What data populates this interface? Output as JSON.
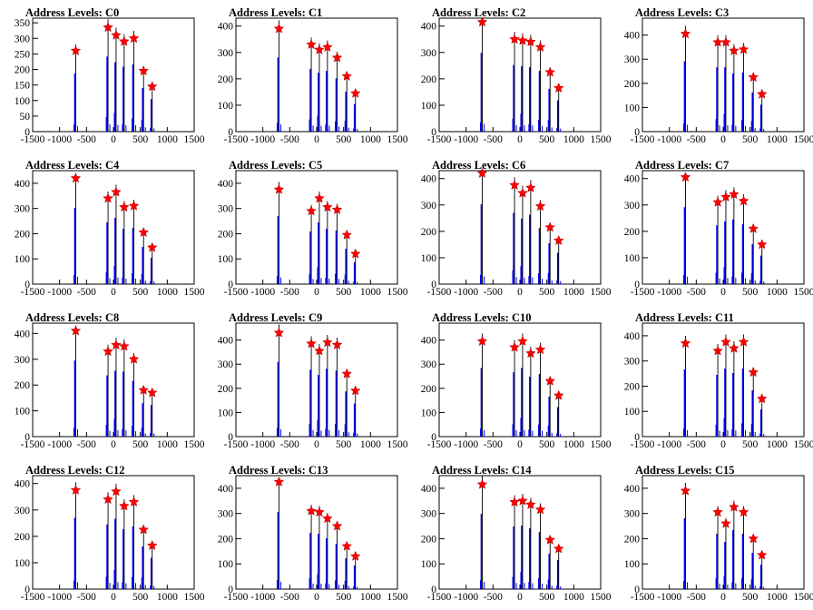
{
  "chart_data": [
    {
      "title": "Address Levels: C0",
      "type": "bar",
      "xlim": [
        -1500,
        1500
      ],
      "ylim": [
        0,
        365
      ],
      "yticks": [
        0,
        50,
        100,
        150,
        200,
        250,
        300,
        350
      ],
      "xticks": [
        -1500,
        -1000,
        -500,
        0,
        500,
        1000,
        1500
      ],
      "peaks": [
        [
          -700,
          260
        ],
        [
          -100,
          335
        ],
        [
          50,
          310
        ],
        [
          200,
          290
        ],
        [
          380,
          300
        ],
        [
          560,
          195
        ],
        [
          720,
          145
        ]
      ]
    },
    {
      "title": "Address Levels: C1",
      "type": "bar",
      "xlim": [
        -1500,
        1500
      ],
      "ylim": [
        0,
        430
      ],
      "yticks": [
        0,
        100,
        200,
        300,
        400
      ],
      "xticks": [
        -1500,
        -1000,
        -500,
        0,
        500,
        1000,
        1500
      ],
      "peaks": [
        [
          -700,
          390
        ],
        [
          -100,
          330
        ],
        [
          50,
          310
        ],
        [
          200,
          320
        ],
        [
          380,
          280
        ],
        [
          560,
          210
        ],
        [
          720,
          145
        ]
      ]
    },
    {
      "title": "Address Levels: C2",
      "type": "bar",
      "xlim": [
        -1500,
        1500
      ],
      "ylim": [
        0,
        430
      ],
      "yticks": [
        0,
        100,
        200,
        300,
        400
      ],
      "xticks": [
        -1500,
        -1000,
        -500,
        0,
        500,
        1000,
        1500
      ],
      "peaks": [
        [
          -700,
          415
        ],
        [
          -100,
          350
        ],
        [
          50,
          345
        ],
        [
          200,
          340
        ],
        [
          380,
          320
        ],
        [
          560,
          225
        ],
        [
          720,
          165
        ]
      ]
    },
    {
      "title": "Address Levels: C3",
      "type": "bar",
      "xlim": [
        -1500,
        1500
      ],
      "ylim": [
        0,
        470
      ],
      "yticks": [
        0,
        100,
        200,
        300,
        400
      ],
      "xticks": [
        -1500,
        -1000,
        -500,
        0,
        500,
        1000,
        1500
      ],
      "peaks": [
        [
          -700,
          405
        ],
        [
          -100,
          370
        ],
        [
          50,
          370
        ],
        [
          200,
          335
        ],
        [
          380,
          340
        ],
        [
          560,
          225
        ],
        [
          720,
          155
        ]
      ]
    },
    {
      "title": "Address Levels: C4",
      "type": "bar",
      "xlim": [
        -1500,
        1500
      ],
      "ylim": [
        0,
        450
      ],
      "yticks": [
        0,
        100,
        200,
        300,
        400
      ],
      "xticks": [
        -1500,
        -1000,
        -500,
        0,
        500,
        1000,
        1500
      ],
      "peaks": [
        [
          -700,
          420
        ],
        [
          -100,
          340
        ],
        [
          50,
          365
        ],
        [
          200,
          305
        ],
        [
          380,
          310
        ],
        [
          560,
          205
        ],
        [
          720,
          145
        ]
      ]
    },
    {
      "title": "Address Levels: C5",
      "type": "bar",
      "xlim": [
        -1500,
        1500
      ],
      "ylim": [
        0,
        450
      ],
      "yticks": [
        0,
        100,
        200,
        300,
        400
      ],
      "xticks": [
        -1500,
        -1000,
        -500,
        0,
        500,
        1000,
        1500
      ],
      "peaks": [
        [
          -700,
          375
        ],
        [
          -100,
          290
        ],
        [
          50,
          340
        ],
        [
          200,
          305
        ],
        [
          380,
          295
        ],
        [
          560,
          195
        ],
        [
          720,
          120
        ]
      ]
    },
    {
      "title": "Address Levels: C6",
      "type": "bar",
      "xlim": [
        -1500,
        1500
      ],
      "ylim": [
        0,
        430
      ],
      "yticks": [
        0,
        100,
        200,
        300,
        400
      ],
      "xticks": [
        -1500,
        -1000,
        -500,
        0,
        500,
        1000,
        1500
      ],
      "peaks": [
        [
          -700,
          420
        ],
        [
          -100,
          375
        ],
        [
          50,
          345
        ],
        [
          200,
          365
        ],
        [
          380,
          295
        ],
        [
          560,
          215
        ],
        [
          720,
          165
        ]
      ]
    },
    {
      "title": "Address Levels: C7",
      "type": "bar",
      "xlim": [
        -1500,
        1500
      ],
      "ylim": [
        0,
        430
      ],
      "yticks": [
        0,
        100,
        200,
        300,
        400
      ],
      "xticks": [
        -1500,
        -1000,
        -500,
        0,
        500,
        1000,
        1500
      ],
      "peaks": [
        [
          -700,
          405
        ],
        [
          -100,
          310
        ],
        [
          50,
          330
        ],
        [
          200,
          340
        ],
        [
          380,
          315
        ],
        [
          560,
          210
        ],
        [
          720,
          150
        ]
      ]
    },
    {
      "title": "Address Levels: C8",
      "type": "bar",
      "xlim": [
        -1500,
        1500
      ],
      "ylim": [
        0,
        440
      ],
      "yticks": [
        0,
        100,
        200,
        300,
        400
      ],
      "xticks": [
        -1500,
        -1000,
        -500,
        0,
        500,
        1000,
        1500
      ],
      "peaks": [
        [
          -700,
          410
        ],
        [
          -100,
          330
        ],
        [
          50,
          355
        ],
        [
          200,
          350
        ],
        [
          380,
          300
        ],
        [
          560,
          180
        ],
        [
          720,
          170
        ]
      ]
    },
    {
      "title": "Address Levels: C9",
      "type": "bar",
      "xlim": [
        -1500,
        1500
      ],
      "ylim": [
        0,
        470
      ],
      "yticks": [
        0,
        100,
        200,
        300,
        400
      ],
      "xticks": [
        -1500,
        -1000,
        -500,
        0,
        500,
        1000,
        1500
      ],
      "peaks": [
        [
          -700,
          430
        ],
        [
          -100,
          385
        ],
        [
          50,
          355
        ],
        [
          200,
          390
        ],
        [
          380,
          380
        ],
        [
          560,
          260
        ],
        [
          720,
          190
        ]
      ]
    },
    {
      "title": "Address Levels: C10",
      "type": "bar",
      "xlim": [
        -1500,
        1500
      ],
      "ylim": [
        0,
        470
      ],
      "yticks": [
        0,
        100,
        200,
        300,
        400
      ],
      "xticks": [
        -1500,
        -1000,
        -500,
        0,
        500,
        1000,
        1500
      ],
      "peaks": [
        [
          -700,
          395
        ],
        [
          -100,
          370
        ],
        [
          50,
          395
        ],
        [
          200,
          345
        ],
        [
          380,
          360
        ],
        [
          560,
          230
        ],
        [
          720,
          170
        ]
      ]
    },
    {
      "title": "Address Levels: C11",
      "type": "bar",
      "xlim": [
        -1500,
        1500
      ],
      "ylim": [
        0,
        450
      ],
      "yticks": [
        0,
        100,
        200,
        300,
        400
      ],
      "xticks": [
        -1500,
        -1000,
        -500,
        0,
        500,
        1000,
        1500
      ],
      "peaks": [
        [
          -700,
          370
        ],
        [
          -100,
          340
        ],
        [
          50,
          375
        ],
        [
          200,
          350
        ],
        [
          380,
          375
        ],
        [
          560,
          255
        ],
        [
          720,
          150
        ]
      ]
    },
    {
      "title": "Address Levels: C12",
      "type": "bar",
      "xlim": [
        -1500,
        1500
      ],
      "ylim": [
        0,
        430
      ],
      "yticks": [
        0,
        100,
        200,
        300,
        400
      ],
      "xticks": [
        -1500,
        -1000,
        -500,
        0,
        500,
        1000,
        1500
      ],
      "peaks": [
        [
          -700,
          375
        ],
        [
          -100,
          340
        ],
        [
          50,
          370
        ],
        [
          200,
          315
        ],
        [
          380,
          330
        ],
        [
          560,
          225
        ],
        [
          720,
          165
        ]
      ]
    },
    {
      "title": "Address Levels: C13",
      "type": "bar",
      "xlim": [
        -1500,
        1500
      ],
      "ylim": [
        0,
        450
      ],
      "yticks": [
        0,
        100,
        200,
        300,
        400
      ],
      "xticks": [
        -1500,
        -1000,
        -500,
        0,
        500,
        1000,
        1500
      ],
      "peaks": [
        [
          -700,
          425
        ],
        [
          -100,
          310
        ],
        [
          50,
          305
        ],
        [
          200,
          280
        ],
        [
          380,
          250
        ],
        [
          560,
          170
        ],
        [
          720,
          130
        ]
      ]
    },
    {
      "title": "Address Levels: C14",
      "type": "bar",
      "xlim": [
        -1500,
        1500
      ],
      "ylim": [
        0,
        450
      ],
      "yticks": [
        0,
        100,
        200,
        300,
        400
      ],
      "xticks": [
        -1500,
        -1000,
        -500,
        0,
        500,
        1000,
        1500
      ],
      "peaks": [
        [
          -700,
          415
        ],
        [
          -100,
          345
        ],
        [
          50,
          350
        ],
        [
          200,
          335
        ],
        [
          380,
          315
        ],
        [
          560,
          195
        ],
        [
          720,
          160
        ]
      ]
    },
    {
      "title": "Address Levels: C15",
      "type": "bar",
      "xlim": [
        -1500,
        1500
      ],
      "ylim": [
        0,
        450
      ],
      "yticks": [
        0,
        100,
        200,
        300,
        400
      ],
      "xticks": [
        -1500,
        -1000,
        -500,
        0,
        500,
        1000,
        1500
      ],
      "peaks": [
        [
          -700,
          390
        ],
        [
          -100,
          305
        ],
        [
          50,
          260
        ],
        [
          200,
          325
        ],
        [
          380,
          305
        ],
        [
          560,
          200
        ],
        [
          720,
          135
        ]
      ]
    }
  ],
  "colors": {
    "histogram": "#0000ff",
    "marker": "#ff0000",
    "overlay": "#000000"
  }
}
